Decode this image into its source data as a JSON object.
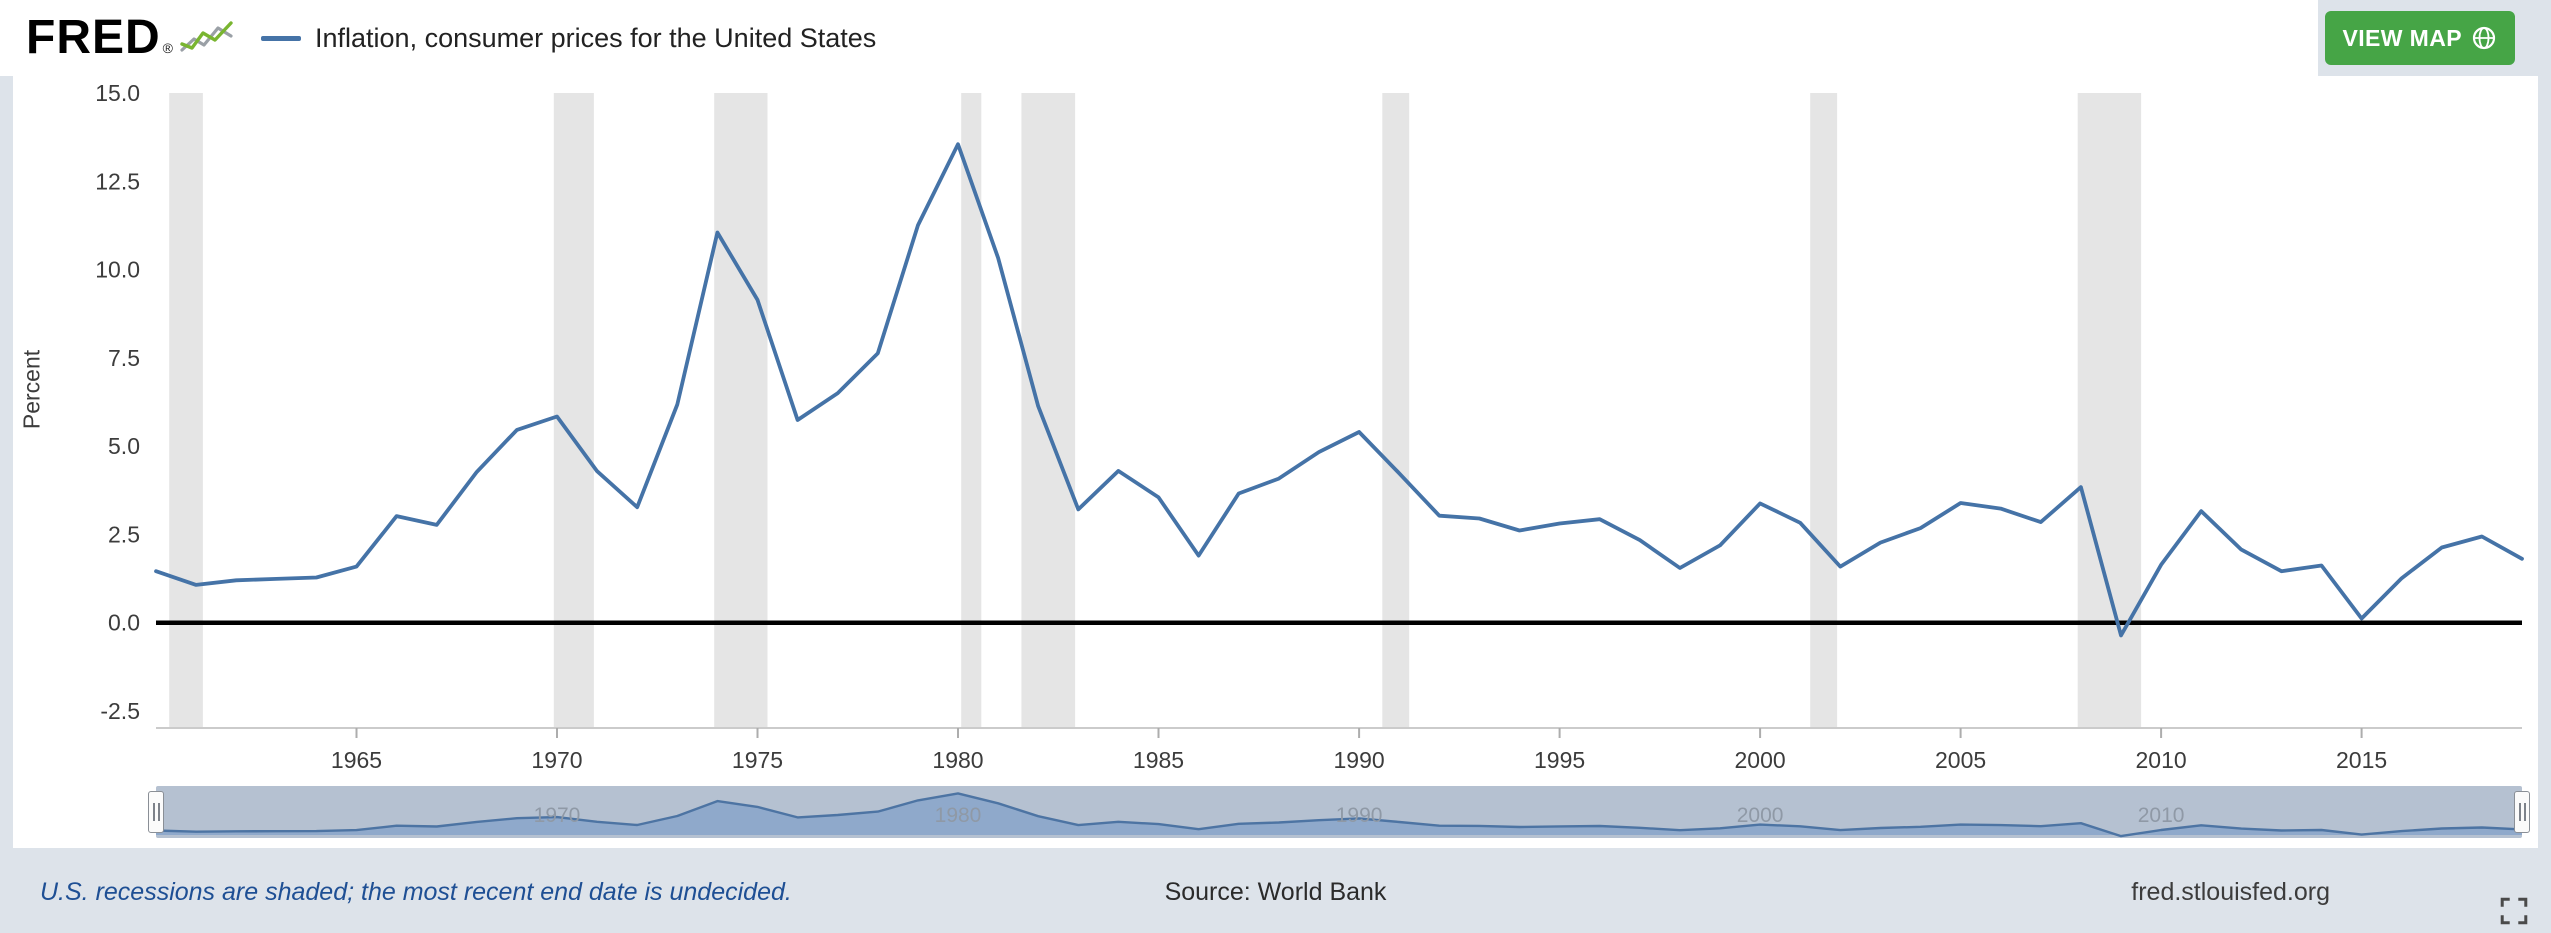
{
  "page": {
    "background": "#dde3ea"
  },
  "header": {
    "logo": {
      "text": "FRED",
      "registered": "®",
      "icon": "sparkline-chart-icon"
    },
    "legend": {
      "label": "Inflation, consumer prices for the United States",
      "line_color": "#4573a7"
    },
    "view_map": {
      "label": "VIEW MAP",
      "bg": "#46a546",
      "icon": "globe-icon"
    }
  },
  "chart_data": {
    "type": "line",
    "title": "Inflation, consumer prices for the United States",
    "xlabel": "",
    "ylabel": "Percent",
    "xlim": [
      1960,
      2019
    ],
    "ylim": [
      -2.5,
      15.0
    ],
    "grid": false,
    "legend_position": "top-left",
    "y_ticks": [
      15.0,
      12.5,
      10.0,
      7.5,
      5.0,
      2.5,
      0.0,
      -2.5
    ],
    "y_tick_labels": [
      "15.0",
      "12.5",
      "10.0",
      "7.5",
      "5.0",
      "2.5",
      "0.0",
      "-2.5"
    ],
    "x_ticks": [
      1965,
      1970,
      1975,
      1980,
      1985,
      1990,
      1995,
      2000,
      2005,
      2010,
      2015
    ],
    "zero_line_color": "#000000",
    "recession_color": "#e5e5e5",
    "recessions": [
      [
        1960.33,
        1961.17
      ],
      [
        1969.92,
        1970.92
      ],
      [
        1973.92,
        1975.25
      ],
      [
        1980.08,
        1980.58
      ],
      [
        1981.58,
        1982.92
      ],
      [
        1990.58,
        1991.25
      ],
      [
        2001.25,
        2001.92
      ],
      [
        2007.92,
        2009.5
      ]
    ],
    "series": [
      {
        "name": "Inflation, consumer prices for the United States",
        "color": "#4573a7",
        "x": [
          1960,
          1961,
          1962,
          1963,
          1964,
          1965,
          1966,
          1967,
          1968,
          1969,
          1970,
          1971,
          1972,
          1973,
          1974,
          1975,
          1976,
          1977,
          1978,
          1979,
          1980,
          1981,
          1982,
          1983,
          1984,
          1985,
          1986,
          1987,
          1988,
          1989,
          1990,
          1991,
          1992,
          1993,
          1994,
          1995,
          1996,
          1997,
          1998,
          1999,
          2000,
          2001,
          2002,
          2003,
          2004,
          2005,
          2006,
          2007,
          2008,
          2009,
          2010,
          2011,
          2012,
          2013,
          2014,
          2015,
          2016,
          2017,
          2018,
          2019
        ],
        "values": [
          1.46,
          1.07,
          1.2,
          1.24,
          1.28,
          1.59,
          3.02,
          2.77,
          4.27,
          5.46,
          5.84,
          4.29,
          3.27,
          6.18,
          11.05,
          9.14,
          5.74,
          6.5,
          7.63,
          11.25,
          13.55,
          10.33,
          6.13,
          3.21,
          4.3,
          3.55,
          1.9,
          3.66,
          4.08,
          4.83,
          5.4,
          4.23,
          3.03,
          2.95,
          2.61,
          2.81,
          2.93,
          2.34,
          1.55,
          2.19,
          3.38,
          2.83,
          1.59,
          2.27,
          2.68,
          3.39,
          3.23,
          2.85,
          3.84,
          -0.36,
          1.64,
          3.16,
          2.07,
          1.46,
          1.62,
          0.12,
          1.26,
          2.13,
          2.44,
          1.81
        ]
      }
    ]
  },
  "slider": {
    "tick_labels": [
      "1970",
      "1980",
      "1990",
      "2000",
      "2010"
    ],
    "tick_years": [
      1970,
      1980,
      1990,
      2000,
      2010
    ],
    "track_bg": "#b5c1d1",
    "area_fill": "#8fa9cb",
    "area_stroke": "#4d74a3",
    "tick_color": "#8f99a6",
    "left_handle_icon": "drag-handle-icon",
    "right_handle_icon": "drag-handle-icon"
  },
  "footer": {
    "note": "U.S. recessions are shaded; the most recent end date is undecided.",
    "source": "Source: World Bank",
    "site": "fred.stlouisfed.org",
    "expand_icon": "fullscreen-expand-icon"
  }
}
